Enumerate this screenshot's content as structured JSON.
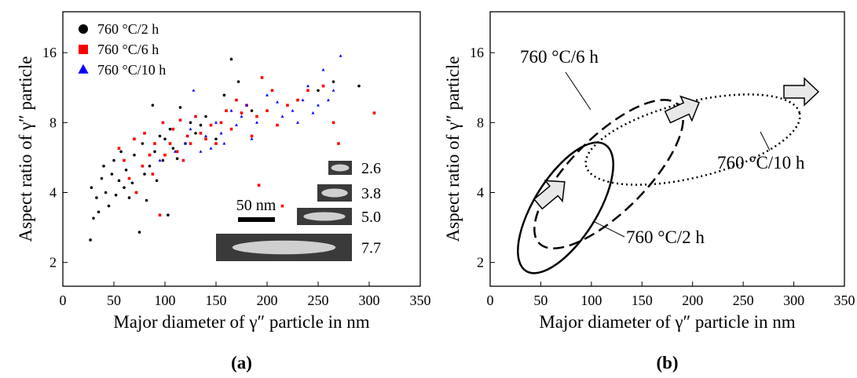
{
  "chart_data": [
    {
      "type": "scatter",
      "label": "(a)",
      "x_label": "Major diameter of γ″ particle in nm",
      "y_label": "Aspect ratio of γ″ particle",
      "xlim": [
        0,
        350
      ],
      "ylim": [
        1.58,
        24
      ],
      "log_y": true,
      "xticks": [
        0,
        50,
        100,
        150,
        200,
        250,
        300,
        350
      ],
      "yticks": [
        2,
        4,
        8,
        16
      ],
      "legend": "upper left",
      "series": [
        {
          "name": "760 °C/2 h",
          "color": "#000000",
          "marker": "circle",
          "x": [
            27,
            30,
            35,
            28,
            33,
            38,
            40,
            42,
            45,
            48,
            50,
            52,
            55,
            57,
            60,
            62,
            65,
            68,
            70,
            72,
            75,
            78,
            80,
            82,
            85,
            88,
            90,
            92,
            95,
            98,
            100,
            103,
            105,
            108,
            112,
            115,
            120,
            125,
            130,
            135,
            140,
            150,
            158,
            165,
            172,
            185,
            250,
            265,
            290
          ],
          "values": [
            2.5,
            3.1,
            3.3,
            4.2,
            3.8,
            4.6,
            5.2,
            4.0,
            3.5,
            4.8,
            5.5,
            3.9,
            4.5,
            6.0,
            4.2,
            5.0,
            3.8,
            4.4,
            5.8,
            4.0,
            2.7,
            6.5,
            4.8,
            3.7,
            5.2,
            9.5,
            6.0,
            4.5,
            7.0,
            5.5,
            6.8,
            3.2,
            7.5,
            6.2,
            5.6,
            9.3,
            6.5,
            8.0,
            7.2,
            7.8,
            8.5,
            6.8,
            10.5,
            15,
            12,
            9,
            11,
            12,
            11.5
          ]
        },
        {
          "name": "760 °C/6 h",
          "color": "#ff0000",
          "marker": "square",
          "x": [
            55,
            60,
            65,
            70,
            72,
            78,
            80,
            85,
            88,
            90,
            95,
            98,
            100,
            105,
            108,
            112,
            115,
            118,
            122,
            125,
            130,
            135,
            140,
            145,
            150,
            155,
            160,
            165,
            170,
            175,
            180,
            185,
            190,
            192,
            195,
            200,
            205,
            210,
            215,
            220,
            230,
            240,
            255,
            265,
            270,
            305
          ],
          "values": [
            6.2,
            5.5,
            4.6,
            6.8,
            4.0,
            5.2,
            7.2,
            5.8,
            4.8,
            6.5,
            3.2,
            8.0,
            5.8,
            6.5,
            7.5,
            6.0,
            8.2,
            5.5,
            7.0,
            6.5,
            8.5,
            7.2,
            6.8,
            7.8,
            6.5,
            8.0,
            9.0,
            7.5,
            10,
            8.8,
            9.5,
            7.0,
            8.5,
            4.3,
            12.5,
            9.0,
            11,
            7.8,
            3.5,
            9.5,
            10,
            11,
            11.5,
            8.0,
            6.5,
            8.8
          ]
        },
        {
          "name": "760 °C/10 h",
          "color": "#0000ff",
          "marker": "triangle",
          "x": [
            95,
            110,
            120,
            125,
            128,
            135,
            140,
            145,
            150,
            155,
            158,
            165,
            170,
            175,
            180,
            185,
            190,
            200,
            210,
            215,
            225,
            235,
            240,
            245,
            250,
            255,
            260,
            265,
            272,
            230
          ],
          "values": [
            5.5,
            6.0,
            6.5,
            7.5,
            11,
            6.0,
            7.0,
            6.2,
            8.0,
            7.2,
            6.5,
            9.0,
            7.8,
            8.5,
            9.5,
            6.8,
            8.0,
            10.5,
            9.8,
            8.5,
            9.0,
            10,
            11.5,
            8.8,
            9.5,
            13.5,
            10,
            11,
            15.5,
            8.0
          ]
        }
      ],
      "annotations": [
        "50 nm",
        "2.6",
        "3.8",
        "5.0",
        "7.7"
      ]
    },
    {
      "type": "region",
      "label": "(b)",
      "x_label": "Major diameter of γ″ particle in nm",
      "y_label": "Aspect ratio of γ″ particle",
      "xlim": [
        0,
        350
      ],
      "ylim": [
        1.58,
        24
      ],
      "log_y": true,
      "xticks": [
        0,
        50,
        100,
        150,
        200,
        250,
        300,
        350
      ],
      "yticks": [
        2,
        4,
        8,
        16
      ],
      "annotations": [
        "760 °C/6 h",
        "760 °C/10 h",
        "760 °C/2 h"
      ]
    }
  ]
}
